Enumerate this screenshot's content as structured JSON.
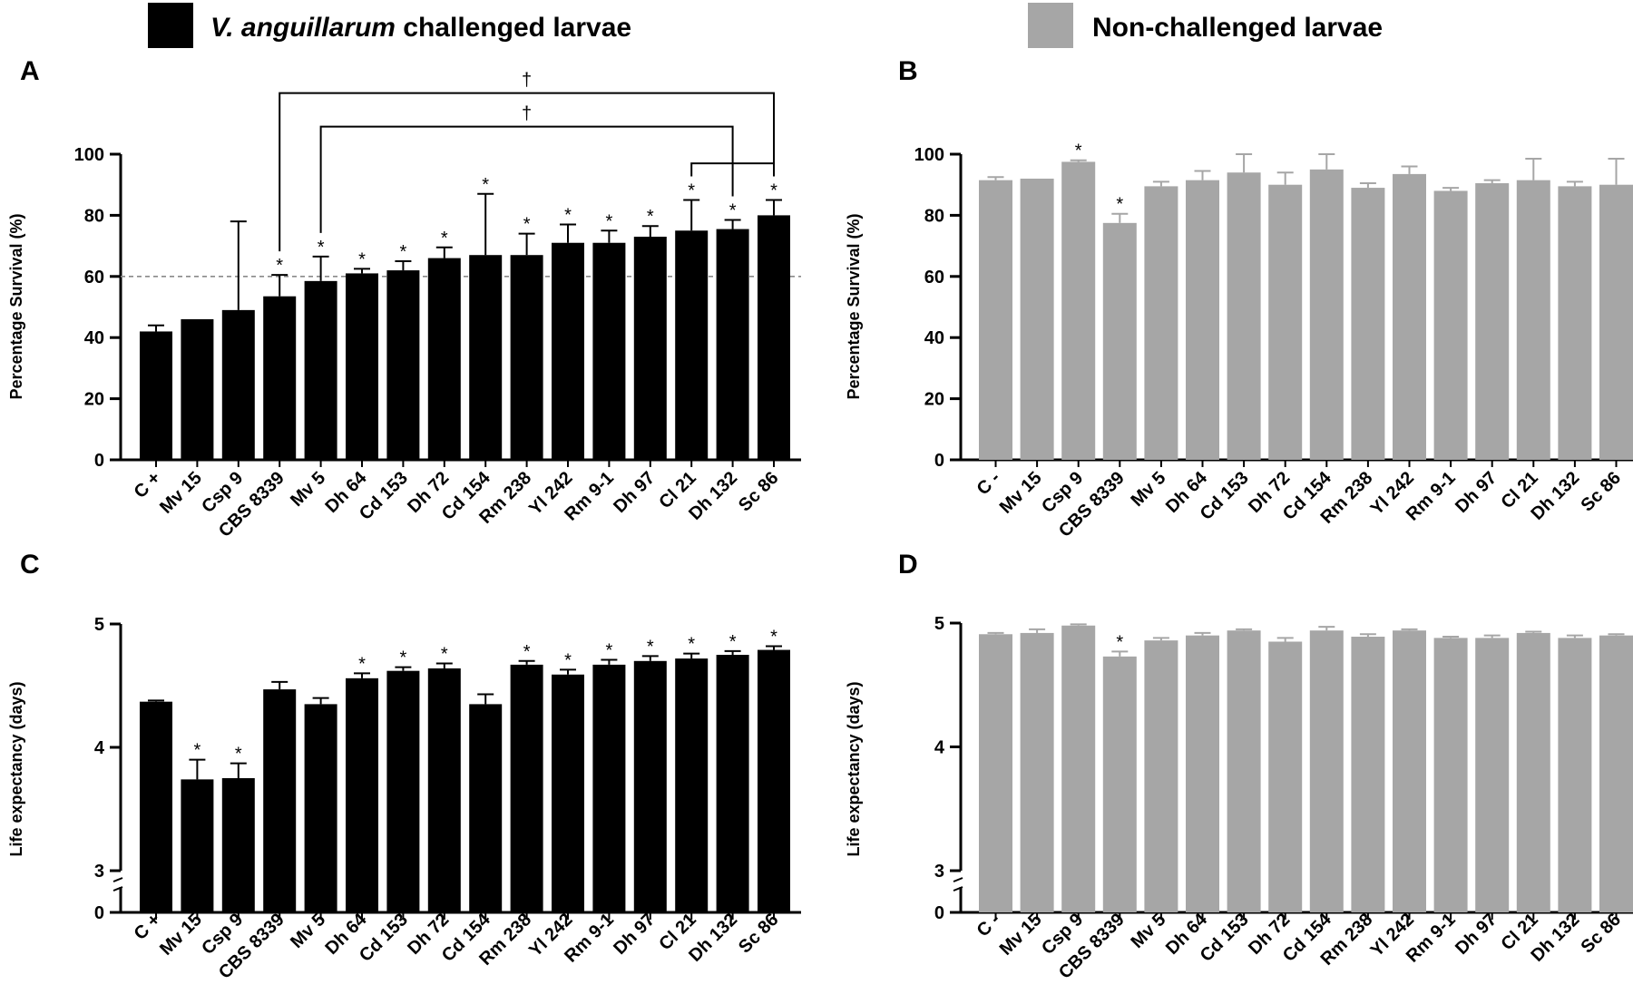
{
  "legend": [
    {
      "prefix": "V. anguillarum",
      "suffix": " challenged larvae",
      "color": "#000000",
      "italic_prefix": true
    },
    {
      "prefix": "",
      "suffix": "Non-challenged larvae",
      "color": "#a6a6a6",
      "italic_prefix": false
    }
  ],
  "chart_data": [
    {
      "panel": "A",
      "type": "bar",
      "color": "#000000",
      "ylabel": "Percentage Survival (%)",
      "ylim": [
        0,
        100
      ],
      "yticks": [
        0,
        20,
        40,
        60,
        80,
        100
      ],
      "ytick_labels": [
        "0",
        "20",
        "40",
        "60",
        "80",
        "100"
      ],
      "axis_break": false,
      "categories": [
        "C +",
        "Mv 15",
        "Csp 9",
        "CBS 8339",
        "Mv 5",
        "Dh 64",
        "Cd 153",
        "Dh 72",
        "Cd 154",
        "Rm 238",
        "Yl 242",
        "Rm 9-1",
        "Dh 97",
        "Cl 21",
        "Dh 132",
        "Sc 86"
      ],
      "values": [
        42,
        46,
        49,
        53.5,
        58.5,
        61,
        62,
        66,
        67,
        67,
        71,
        71,
        73,
        75,
        75.5,
        80
      ],
      "errors": [
        2,
        0,
        29,
        7,
        8,
        1.5,
        3,
        3.5,
        20,
        7,
        6,
        4,
        3.5,
        10,
        3,
        5
      ],
      "significant": [
        false,
        false,
        false,
        true,
        true,
        true,
        true,
        true,
        true,
        true,
        true,
        true,
        true,
        true,
        true,
        true
      ],
      "sig_marker": "*",
      "reference_line": 60,
      "brackets": [
        {
          "from": 3,
          "to": 15,
          "y": 120,
          "label": "†"
        },
        {
          "from": 4,
          "to": 14,
          "y": 109,
          "label": "†"
        },
        {
          "from": 13,
          "to": 15,
          "y": 97,
          "label": ""
        }
      ]
    },
    {
      "panel": "B",
      "type": "bar",
      "color": "#a6a6a6",
      "ylabel": "Percentage Survival (%)",
      "ylim": [
        0,
        100
      ],
      "yticks": [
        0,
        20,
        40,
        60,
        80,
        100
      ],
      "ytick_labels": [
        "0",
        "20",
        "40",
        "60",
        "80",
        "100"
      ],
      "axis_break": false,
      "categories": [
        "C -",
        "Mv 15",
        "Csp 9",
        "CBS 8339",
        "Mv 5",
        "Dh 64",
        "Cd 153",
        "Dh 72",
        "Cd 154",
        "Rm 238",
        "Yl 242",
        "Rm 9-1",
        "Dh 97",
        "Cl 21",
        "Dh 132",
        "Sc 86"
      ],
      "values": [
        91.5,
        92,
        97.5,
        77.5,
        89.5,
        91.5,
        94,
        90,
        95,
        89,
        93.5,
        88,
        90.5,
        91.5,
        89.5,
        90
      ],
      "errors": [
        1,
        0,
        0.5,
        3,
        1.5,
        3,
        6,
        4,
        5,
        1.5,
        2.5,
        1,
        1,
        7,
        1.5,
        8.5
      ],
      "significant": [
        false,
        false,
        true,
        true,
        false,
        false,
        false,
        false,
        false,
        false,
        false,
        false,
        false,
        false,
        false,
        false
      ],
      "sig_marker": "*",
      "reference_line": null,
      "brackets": []
    },
    {
      "panel": "C",
      "type": "bar",
      "color": "#000000",
      "ylabel": "Life expectancy (days)",
      "ylim": [
        3,
        5
      ],
      "yticks": [
        3,
        4,
        5
      ],
      "ytick_labels": [
        "3",
        "4",
        "5"
      ],
      "axis_break": true,
      "axis_zero_label": "0",
      "categories": [
        "C +",
        "Mv 15",
        "Csp 9",
        "CBS 8339",
        "Mv 5",
        "Dh 64",
        "Cd 153",
        "Dh 72",
        "Cd 154",
        "Rm 238",
        "Yl 242",
        "Rm 9-1",
        "Dh 97",
        "Cl 21",
        "Dh 132",
        "Sc 86"
      ],
      "values": [
        4.37,
        3.74,
        3.75,
        4.47,
        4.35,
        4.56,
        4.62,
        4.64,
        4.35,
        4.67,
        4.59,
        4.67,
        4.7,
        4.72,
        4.75,
        4.79
      ],
      "errors": [
        0.01,
        0.16,
        0.12,
        0.06,
        0.05,
        0.04,
        0.03,
        0.04,
        0.08,
        0.03,
        0.04,
        0.04,
        0.04,
        0.04,
        0.03,
        0.03
      ],
      "significant": [
        false,
        true,
        true,
        false,
        false,
        true,
        true,
        true,
        false,
        true,
        true,
        true,
        true,
        true,
        true,
        true
      ],
      "sig_marker": "*",
      "reference_line": null,
      "brackets": []
    },
    {
      "panel": "D",
      "type": "bar",
      "color": "#a6a6a6",
      "ylabel": "Life expectancy (days)",
      "ylim": [
        3,
        5
      ],
      "yticks": [
        3,
        4,
        5
      ],
      "ytick_labels": [
        "3",
        "4",
        "5"
      ],
      "axis_break": true,
      "axis_zero_label": "0",
      "categories": [
        "C -",
        "Mv 15",
        "Csp 9",
        "CBS 8339",
        "Mv 5",
        "Dh 64",
        "Cd 153",
        "Dh 72",
        "Cd 154",
        "Rm 238",
        "Yl 242",
        "Rm 9-1",
        "Dh 97",
        "Cl 21",
        "Dh 132",
        "Sc 86"
      ],
      "values": [
        4.91,
        4.92,
        4.98,
        4.73,
        4.86,
        4.9,
        4.94,
        4.85,
        4.94,
        4.89,
        4.94,
        4.88,
        4.88,
        4.92,
        4.88,
        4.9
      ],
      "errors": [
        0.01,
        0.03,
        0.01,
        0.04,
        0.02,
        0.02,
        0.01,
        0.03,
        0.03,
        0.02,
        0.01,
        0.01,
        0.02,
        0.01,
        0.02,
        0.01
      ],
      "significant": [
        false,
        false,
        false,
        true,
        false,
        false,
        false,
        false,
        false,
        false,
        false,
        false,
        false,
        false,
        false,
        false
      ],
      "sig_marker": "*",
      "reference_line": null,
      "brackets": []
    }
  ]
}
